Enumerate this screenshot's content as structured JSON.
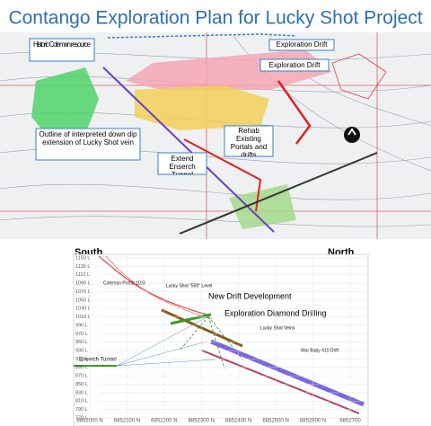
{
  "header": {
    "title": "Contango Exploration Plan for Lucky Shot Project"
  },
  "map": {
    "callouts": [
      "Historic Coleman resource",
      "Exploration Drift",
      "Exploration Drift",
      "Outline of interpreted down dip extension of Lucky Shot vein",
      "Rehab Existing Portals and drifts",
      "Extend Enserch Tunnel"
    ]
  },
  "section": {
    "south": "South",
    "north": "North",
    "levels": [
      "1150 L",
      "1130 L",
      "1110 L",
      "1090 L",
      "1070 L",
      "1050 L",
      "1030 L",
      "1010 L",
      "990 L",
      "970 L",
      "950 L",
      "930 L",
      "910 L",
      "890 L",
      "870 L",
      "850 L",
      "830 L",
      "810 L",
      "790 L",
      "770 L"
    ],
    "northings": [
      "6852000 N",
      "6852100 N",
      "6852200 N",
      "6852300 N",
      "6852400 N",
      "6852500 N",
      "6852600 N",
      "6852700"
    ],
    "labels": [
      "Coleman Portal 1103",
      "Lucky Shot \"500\" Level",
      "New Drift Development",
      "Exploration Diamond Drilling",
      "Lucky Shot Veins",
      "War Baby 410 Drift",
      "Enserch Tunnel"
    ]
  }
}
